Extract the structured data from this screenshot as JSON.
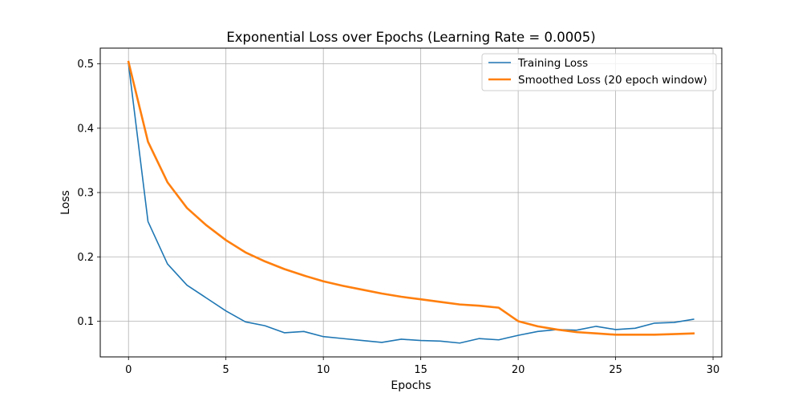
{
  "chart_data": {
    "type": "line",
    "title": "Exponential Loss over Epochs (Learning Rate = 0.0005)",
    "xlabel": "Epochs",
    "ylabel": "Loss",
    "xlim": [
      -1.45,
      30.45
    ],
    "ylim": [
      0.0445,
      0.5245
    ],
    "xticks": [
      0,
      5,
      10,
      15,
      20,
      25,
      30
    ],
    "yticks": [
      0.1,
      0.2,
      0.3,
      0.4,
      0.5
    ],
    "xtick_labels": [
      "0",
      "5",
      "10",
      "15",
      "20",
      "25",
      "30"
    ],
    "ytick_labels": [
      "0.1",
      "0.2",
      "0.3",
      "0.4",
      "0.5"
    ],
    "grid": true,
    "legend_position": "top-right",
    "x": [
      0,
      1,
      2,
      3,
      4,
      5,
      6,
      7,
      8,
      9,
      10,
      11,
      12,
      13,
      14,
      15,
      16,
      17,
      18,
      19,
      20,
      21,
      22,
      23,
      24,
      25,
      26,
      27,
      28,
      29
    ],
    "series": [
      {
        "name": "Training Loss",
        "color": "#1f77b4",
        "x": [
          0,
          1,
          2,
          3,
          4,
          5,
          6,
          7,
          8,
          9,
          10,
          11,
          12,
          13,
          14,
          15,
          16,
          17,
          18,
          19,
          20,
          21,
          22,
          23,
          24,
          25,
          26,
          27,
          28,
          29
        ],
        "values": [
          0.5,
          0.255,
          0.189,
          0.156,
          0.136,
          0.116,
          0.099,
          0.093,
          0.082,
          0.084,
          0.076,
          0.073,
          0.07,
          0.067,
          0.072,
          0.07,
          0.069,
          0.066,
          0.073,
          0.071,
          0.078,
          0.084,
          0.087,
          0.086,
          0.092,
          0.087,
          0.089,
          0.097,
          0.098,
          0.103
        ]
      },
      {
        "name": "Smoothed Loss (20 epoch window)",
        "color": "#ff7f0e",
        "x": [
          0,
          1,
          2,
          3,
          4,
          5,
          6,
          7,
          8,
          9,
          10,
          11,
          12,
          13,
          14,
          15,
          16,
          17,
          18,
          19,
          20,
          21,
          22,
          23,
          24,
          25,
          26,
          27,
          28,
          29
        ],
        "values": [
          0.503,
          0.379,
          0.316,
          0.276,
          0.249,
          0.226,
          0.207,
          0.193,
          0.181,
          0.171,
          0.162,
          0.155,
          0.149,
          0.143,
          0.138,
          0.134,
          0.13,
          0.126,
          0.124,
          0.121,
          0.1,
          0.092,
          0.087,
          0.083,
          0.081,
          0.079,
          0.079,
          0.079,
          0.08,
          0.081
        ]
      }
    ]
  }
}
